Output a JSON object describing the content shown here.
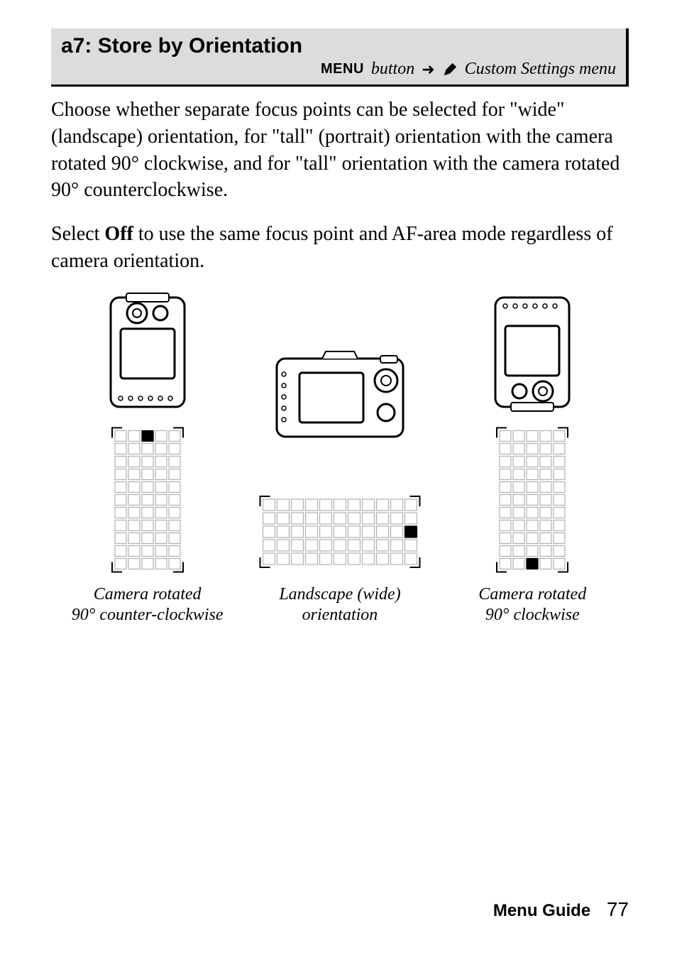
{
  "header": {
    "title": "a7: Store by Orientation",
    "menu_word": "MENU",
    "button_word": "button",
    "arrow": "➜",
    "sub_text": "Custom Settings menu"
  },
  "para1": "Choose whether separate focus points can be selected for \"wide\" (landscape) orientation, for \"tall\" (portrait) orientation with the camera rotated 90° clockwise, and for \"tall\" orientation with the camera rotated 90° counterclockwise.",
  "para2_pre": "Select ",
  "para2_bold": "Off",
  "para2_post": " to use the same focus point and AF-area mode regardless of camera orientation.",
  "figures": {
    "left": {
      "caption_line1": "Camera rotated",
      "caption_line2": "90° counter-clockwise",
      "grid": {
        "rows": 11,
        "cols": 5,
        "filled_row": 0,
        "filled_col": 2,
        "orient": "tall"
      }
    },
    "mid": {
      "caption_line1": "Landscape (wide)",
      "caption_line2": "orientation",
      "grid": {
        "rows": 5,
        "cols": 11,
        "filled_row": 2,
        "filled_col": 10,
        "orient": "wide"
      }
    },
    "right": {
      "caption_line1": "Camera rotated",
      "caption_line2": "90° clockwise",
      "grid": {
        "rows": 11,
        "cols": 5,
        "filled_row": 10,
        "filled_col": 2,
        "orient": "tall"
      }
    }
  },
  "footer": {
    "label": "Menu Guide",
    "page": "77"
  },
  "colors": {
    "header_bg": "#dcdcdc",
    "text": "#000000",
    "grid_stroke": "#b0b0b0",
    "grid_fill": "#000000"
  }
}
